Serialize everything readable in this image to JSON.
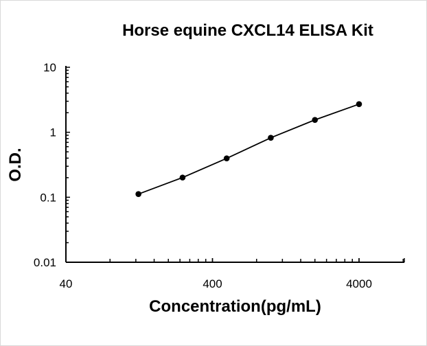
{
  "chart_data": {
    "type": "line",
    "title": "Horse equine CXCL14 ELISA Kit",
    "xlabel": "Concentration(pg/mL)",
    "ylabel": "O.D.",
    "x_scale": "log",
    "y_scale": "log",
    "xlim": [
      40,
      8000
    ],
    "ylim": [
      0.01,
      10
    ],
    "x_ticks": [
      "40",
      "400",
      "4000"
    ],
    "y_ticks": [
      "0.01",
      "0.1",
      "1",
      "10"
    ],
    "grid": false,
    "series": [
      {
        "x": [
          125,
          250,
          500,
          1000,
          2000,
          4000
        ],
        "y": [
          0.112,
          0.201,
          0.397,
          0.823,
          1.55,
          2.71
        ],
        "color": "#000000",
        "marker": "circle"
      }
    ]
  }
}
